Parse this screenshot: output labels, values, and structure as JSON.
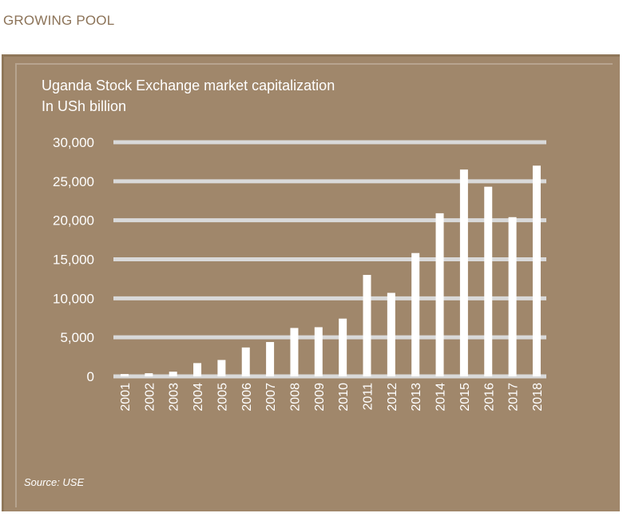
{
  "kicker": "GROWING POOL",
  "chart_data": {
    "type": "bar",
    "title": "Uganda Stock Exchange market capitalization",
    "subtitle": "In USh billion",
    "categories": [
      "2001",
      "2002",
      "2003",
      "2004",
      "2005",
      "2006",
      "2007",
      "2008",
      "2009",
      "2010",
      "2011",
      "2012",
      "2013",
      "2014",
      "2015",
      "2016",
      "2017",
      "2018"
    ],
    "values": [
      300,
      400,
      600,
      1700,
      2100,
      3700,
      4400,
      6200,
      6300,
      7400,
      13000,
      10700,
      15800,
      20900,
      26500,
      24300,
      20400,
      27000
    ],
    "yticks": [
      "0",
      "5,000",
      "10,000",
      "15,000",
      "20,000",
      "25,000",
      "30,000"
    ],
    "ylim": [
      0,
      30000
    ],
    "grid": true,
    "colors": {
      "panel": "#a0876b",
      "bars": "#ffffff",
      "grid": "#d9d9d9",
      "kicker": "#8c7358"
    }
  },
  "source": "Source: USE"
}
